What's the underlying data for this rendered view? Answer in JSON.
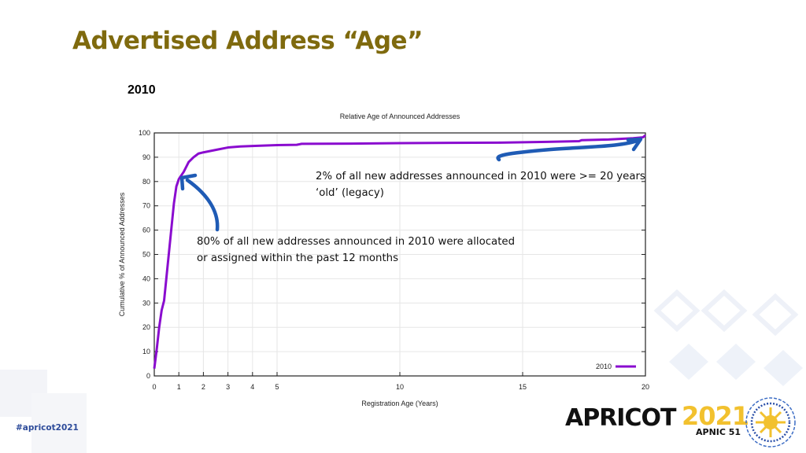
{
  "slide": {
    "title": "Advertised Address “Age”",
    "subtitle": "2010",
    "hashtag": "#apricot2021",
    "brand": {
      "name": "APRICOT",
      "year": "2021",
      "sub": "APNIC 51"
    },
    "colors": {
      "title": "#7f6a0e",
      "series": "#8a0ccf",
      "arrow": "#1f5bb5",
      "hashtag": "#2d4b9a",
      "brand_year": "#f2c12e"
    }
  },
  "annotations": {
    "top_right_line1": "2% of all new addresses announced in 2010 were >= 20 years",
    "top_right_line2": "‘old’ (legacy)",
    "left_line1": "80% of all new addresses announced in 2010 were allocated",
    "left_line2": "or assigned within the past 12 months"
  },
  "chart_data": {
    "type": "line",
    "title": "Relative Age of Announced Addresses",
    "xlabel": "Registration Age (Years)",
    "ylabel": "Cumulative % of Announced Addresses",
    "xlim": [
      0,
      20
    ],
    "ylim": [
      0,
      100
    ],
    "xticks": [
      0,
      1,
      2,
      3,
      4,
      5,
      10,
      15,
      20
    ],
    "yticks": [
      0,
      10,
      20,
      30,
      40,
      50,
      60,
      70,
      80,
      90,
      100
    ],
    "grid": true,
    "legend_position": "bottom-right",
    "series": [
      {
        "name": "2010",
        "x": [
          0,
          0.1,
          0.2,
          0.3,
          0.4,
          0.5,
          0.6,
          0.7,
          0.8,
          0.9,
          1.0,
          1.2,
          1.4,
          1.6,
          1.8,
          2.0,
          2.5,
          3.0,
          3.5,
          4.0,
          5.0,
          5.8,
          6.0,
          8.0,
          10.0,
          12.0,
          14.0,
          16.0,
          17.3,
          17.4,
          18.5,
          19.5,
          19.9,
          20.0
        ],
        "y": [
          3,
          11,
          20,
          27,
          31,
          41,
          51,
          61,
          71,
          78,
          81,
          84,
          88,
          90,
          91.5,
          92,
          93,
          94,
          94.4,
          94.6,
          95,
          95.1,
          95.5,
          95.6,
          95.8,
          95.9,
          96.0,
          96.3,
          96.6,
          97.0,
          97.3,
          97.8,
          98.2,
          99
        ]
      }
    ]
  }
}
